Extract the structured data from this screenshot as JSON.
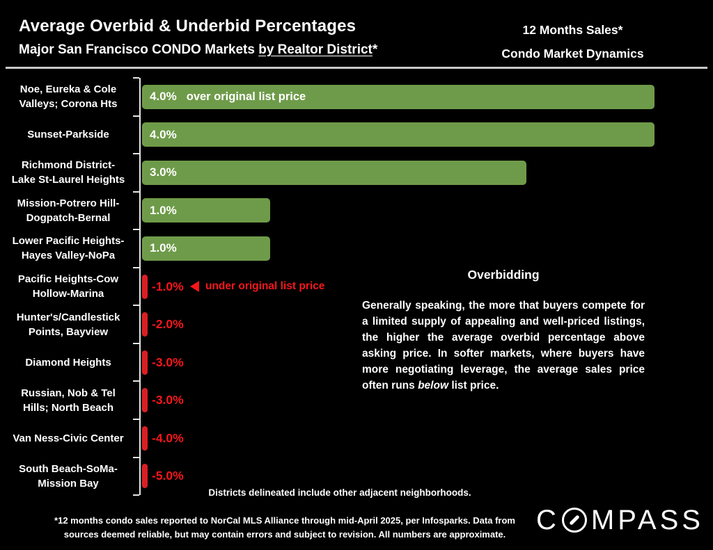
{
  "header": {
    "title": "Average Overbid & Underbid Percentages",
    "subtitle_prefix": "Major San Francisco CONDO Markets ",
    "subtitle_underlined": "by Realtor District",
    "subtitle_suffix": "*",
    "right_line1": "12 Months Sales*",
    "right_line2": "Condo Market Dynamics"
  },
  "chart_data": {
    "type": "bar",
    "orientation": "horizontal",
    "unit": "percent",
    "title": "Average Overbid & Underbid Percentages",
    "xlim": [
      -5.0,
      4.0
    ],
    "grid": false,
    "legend": "none",
    "categories": [
      "Noe, Eureka & Cole Valleys; Corona Hts",
      "Sunset-Parkside",
      "Richmond District-Lake St-Laurel Heights",
      "Mission-Potrero Hill-Dogpatch-Bernal",
      "Lower Pacific Heights-Hayes Valley-NoPa",
      "Pacific Heights-Cow Hollow-Marina",
      "Hunter's/Candlestick Points, Bayview",
      "Diamond Heights",
      "Russian, Nob & Tel Hills; North Beach",
      "Van Ness-Civic Center",
      "South Beach-SoMa-Mission Bay"
    ],
    "category_label_lines": [
      [
        "Noe, Eureka & Cole",
        "Valleys; Corona Hts"
      ],
      [
        "Sunset-Parkside"
      ],
      [
        "Richmond District-",
        "Lake St-Laurel Heights"
      ],
      [
        "Mission-Potrero Hill-",
        "Dogpatch-Bernal"
      ],
      [
        "Lower Pacific Heights-",
        "Hayes Valley-NoPa"
      ],
      [
        "Pacific Heights-Cow",
        "Hollow-Marina"
      ],
      [
        "Hunter's/Candlestick",
        "Points, Bayview"
      ],
      [
        "Diamond Heights"
      ],
      [
        "Russian, Nob & Tel",
        "Hills; North Beach"
      ],
      [
        "Van Ness-Civic Center"
      ],
      [
        "South Beach-SoMa-",
        "Mission Bay"
      ]
    ],
    "values": [
      4.0,
      4.0,
      3.0,
      1.0,
      1.0,
      -1.0,
      -2.0,
      -3.0,
      -3.0,
      -4.0,
      -5.0
    ],
    "value_labels": [
      "4.0%",
      "4.0%",
      "3.0%",
      "1.0%",
      "1.0%",
      "-1.0%",
      "-2.0%",
      "-3.0%",
      "-3.0%",
      "-4.0%",
      "-5.0%"
    ],
    "positive_annotation": "over original list price",
    "negative_annotation": "under original list price",
    "negative_annotation_icon": "left-arrow",
    "colors": {
      "positive_bar": "#6e9b49",
      "negative_bar": "#da1f23",
      "negative_text": "#f5161b",
      "axis": "#e6e6e6"
    }
  },
  "overbidding": {
    "title": "Overbidding",
    "body_before": "Generally speaking, the more that buyers compete for a limited supply of appealing and well-priced listings, the higher the average overbid percentage above asking price. In softer markets, where buyers have more negotiating leverage, the average sales price often runs ",
    "body_italic": "below",
    "body_after": " list price."
  },
  "notes": {
    "districts": "Districts delineated include other adjacent neighborhoods.",
    "footnote": "*12 months condo sales reported to NorCal MLS Alliance through mid-April 2025, per Infosparks. Data from\nsources deemed reliable, but may contain errors and subject to revision. All numbers are approximate."
  },
  "logo": {
    "prefix": "C",
    "suffix": "MPASS",
    "name": "COMPASS"
  }
}
